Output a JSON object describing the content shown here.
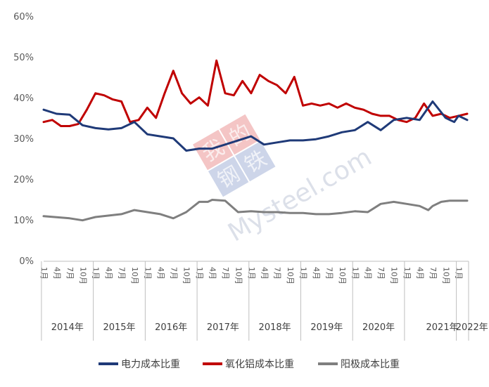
{
  "chart_data": {
    "type": "line",
    "title": "",
    "xlabel": "",
    "ylabel": "",
    "ylim": [
      0,
      60
    ],
    "yticks": [
      "0%",
      "10%",
      "20%",
      "30%",
      "40%",
      "50%",
      "60%"
    ],
    "grid": false,
    "legend_position": "bottom",
    "month_labels": [
      "1月",
      "4月",
      "7月",
      "10月"
    ],
    "years": [
      "2014年",
      "2015年",
      "2016年",
      "2017年",
      "2018年",
      "2019年",
      "2020年",
      "2021年",
      "2022年"
    ],
    "n_months": 99,
    "series": [
      {
        "name": "电力成本比重",
        "color": "#1f3a78",
        "x_month_index": [
          0,
          3,
          6,
          9,
          12,
          15,
          18,
          21,
          24,
          27,
          30,
          33,
          36,
          39,
          42,
          45,
          48,
          51,
          54,
          57,
          60,
          63,
          66,
          69,
          72,
          75,
          78,
          81,
          84,
          87,
          90,
          93,
          94,
          95,
          96,
          98
        ],
        "values": [
          37,
          36,
          35.8,
          33.2,
          32.5,
          32.2,
          32.5,
          34,
          31,
          30.5,
          30,
          27,
          27.5,
          27.5,
          28.5,
          29.5,
          30.5,
          28.5,
          29,
          29.5,
          29.5,
          29.8,
          30.5,
          31.5,
          32,
          34,
          32,
          34.5,
          35,
          34.5,
          39,
          35,
          34.5,
          34,
          35.5,
          34.5
        ]
      },
      {
        "name": "氧化铝成本比重",
        "color": "#c00000",
        "x_month_index": [
          0,
          2,
          4,
          6,
          8,
          10,
          12,
          14,
          16,
          18,
          20,
          22,
          24,
          26,
          28,
          30,
          32,
          34,
          36,
          38,
          40,
          42,
          44,
          46,
          48,
          50,
          52,
          54,
          56,
          58,
          60,
          62,
          64,
          66,
          68,
          70,
          72,
          74,
          76,
          78,
          80,
          82,
          84,
          86,
          88,
          90,
          92,
          94,
          96,
          98
        ],
        "values": [
          34,
          34.5,
          33,
          33,
          33.5,
          37,
          41,
          40.5,
          39.5,
          39,
          34,
          34.5,
          37.5,
          35,
          41,
          46.5,
          41,
          38.5,
          40,
          38,
          49,
          41,
          40.5,
          44,
          41,
          45.5,
          44,
          43,
          41,
          45,
          38,
          38.5,
          38,
          38.5,
          37.5,
          38.5,
          37.5,
          37,
          36,
          35.5,
          35.5,
          34.5,
          34,
          35,
          38.5,
          35.5,
          36,
          35,
          35.5,
          36
        ]
      },
      {
        "name": "阳极成本比重",
        "color": "#7f7f7f",
        "x_month_index": [
          0,
          6,
          9,
          12,
          18,
          21,
          24,
          27,
          30,
          33,
          36,
          38,
          39,
          42,
          45,
          48,
          51,
          54,
          57,
          60,
          63,
          66,
          69,
          72,
          75,
          78,
          81,
          84,
          87,
          89,
          90,
          92,
          94,
          96,
          98
        ],
        "values": [
          11,
          10.5,
          10,
          10.8,
          11.5,
          12.5,
          12,
          11.5,
          10.5,
          12,
          14.5,
          14.5,
          15,
          14.8,
          12,
          12.2,
          12,
          12,
          11.8,
          11.8,
          11.5,
          11.5,
          11.8,
          12.2,
          12,
          14,
          14.5,
          14,
          13.5,
          12.5,
          13.5,
          14.5,
          14.8,
          14.8,
          14.8
        ]
      }
    ]
  },
  "watermark": {
    "logo_chars": [
      "我",
      "的",
      "钢",
      "铁"
    ],
    "text": "Mysteel.com"
  }
}
